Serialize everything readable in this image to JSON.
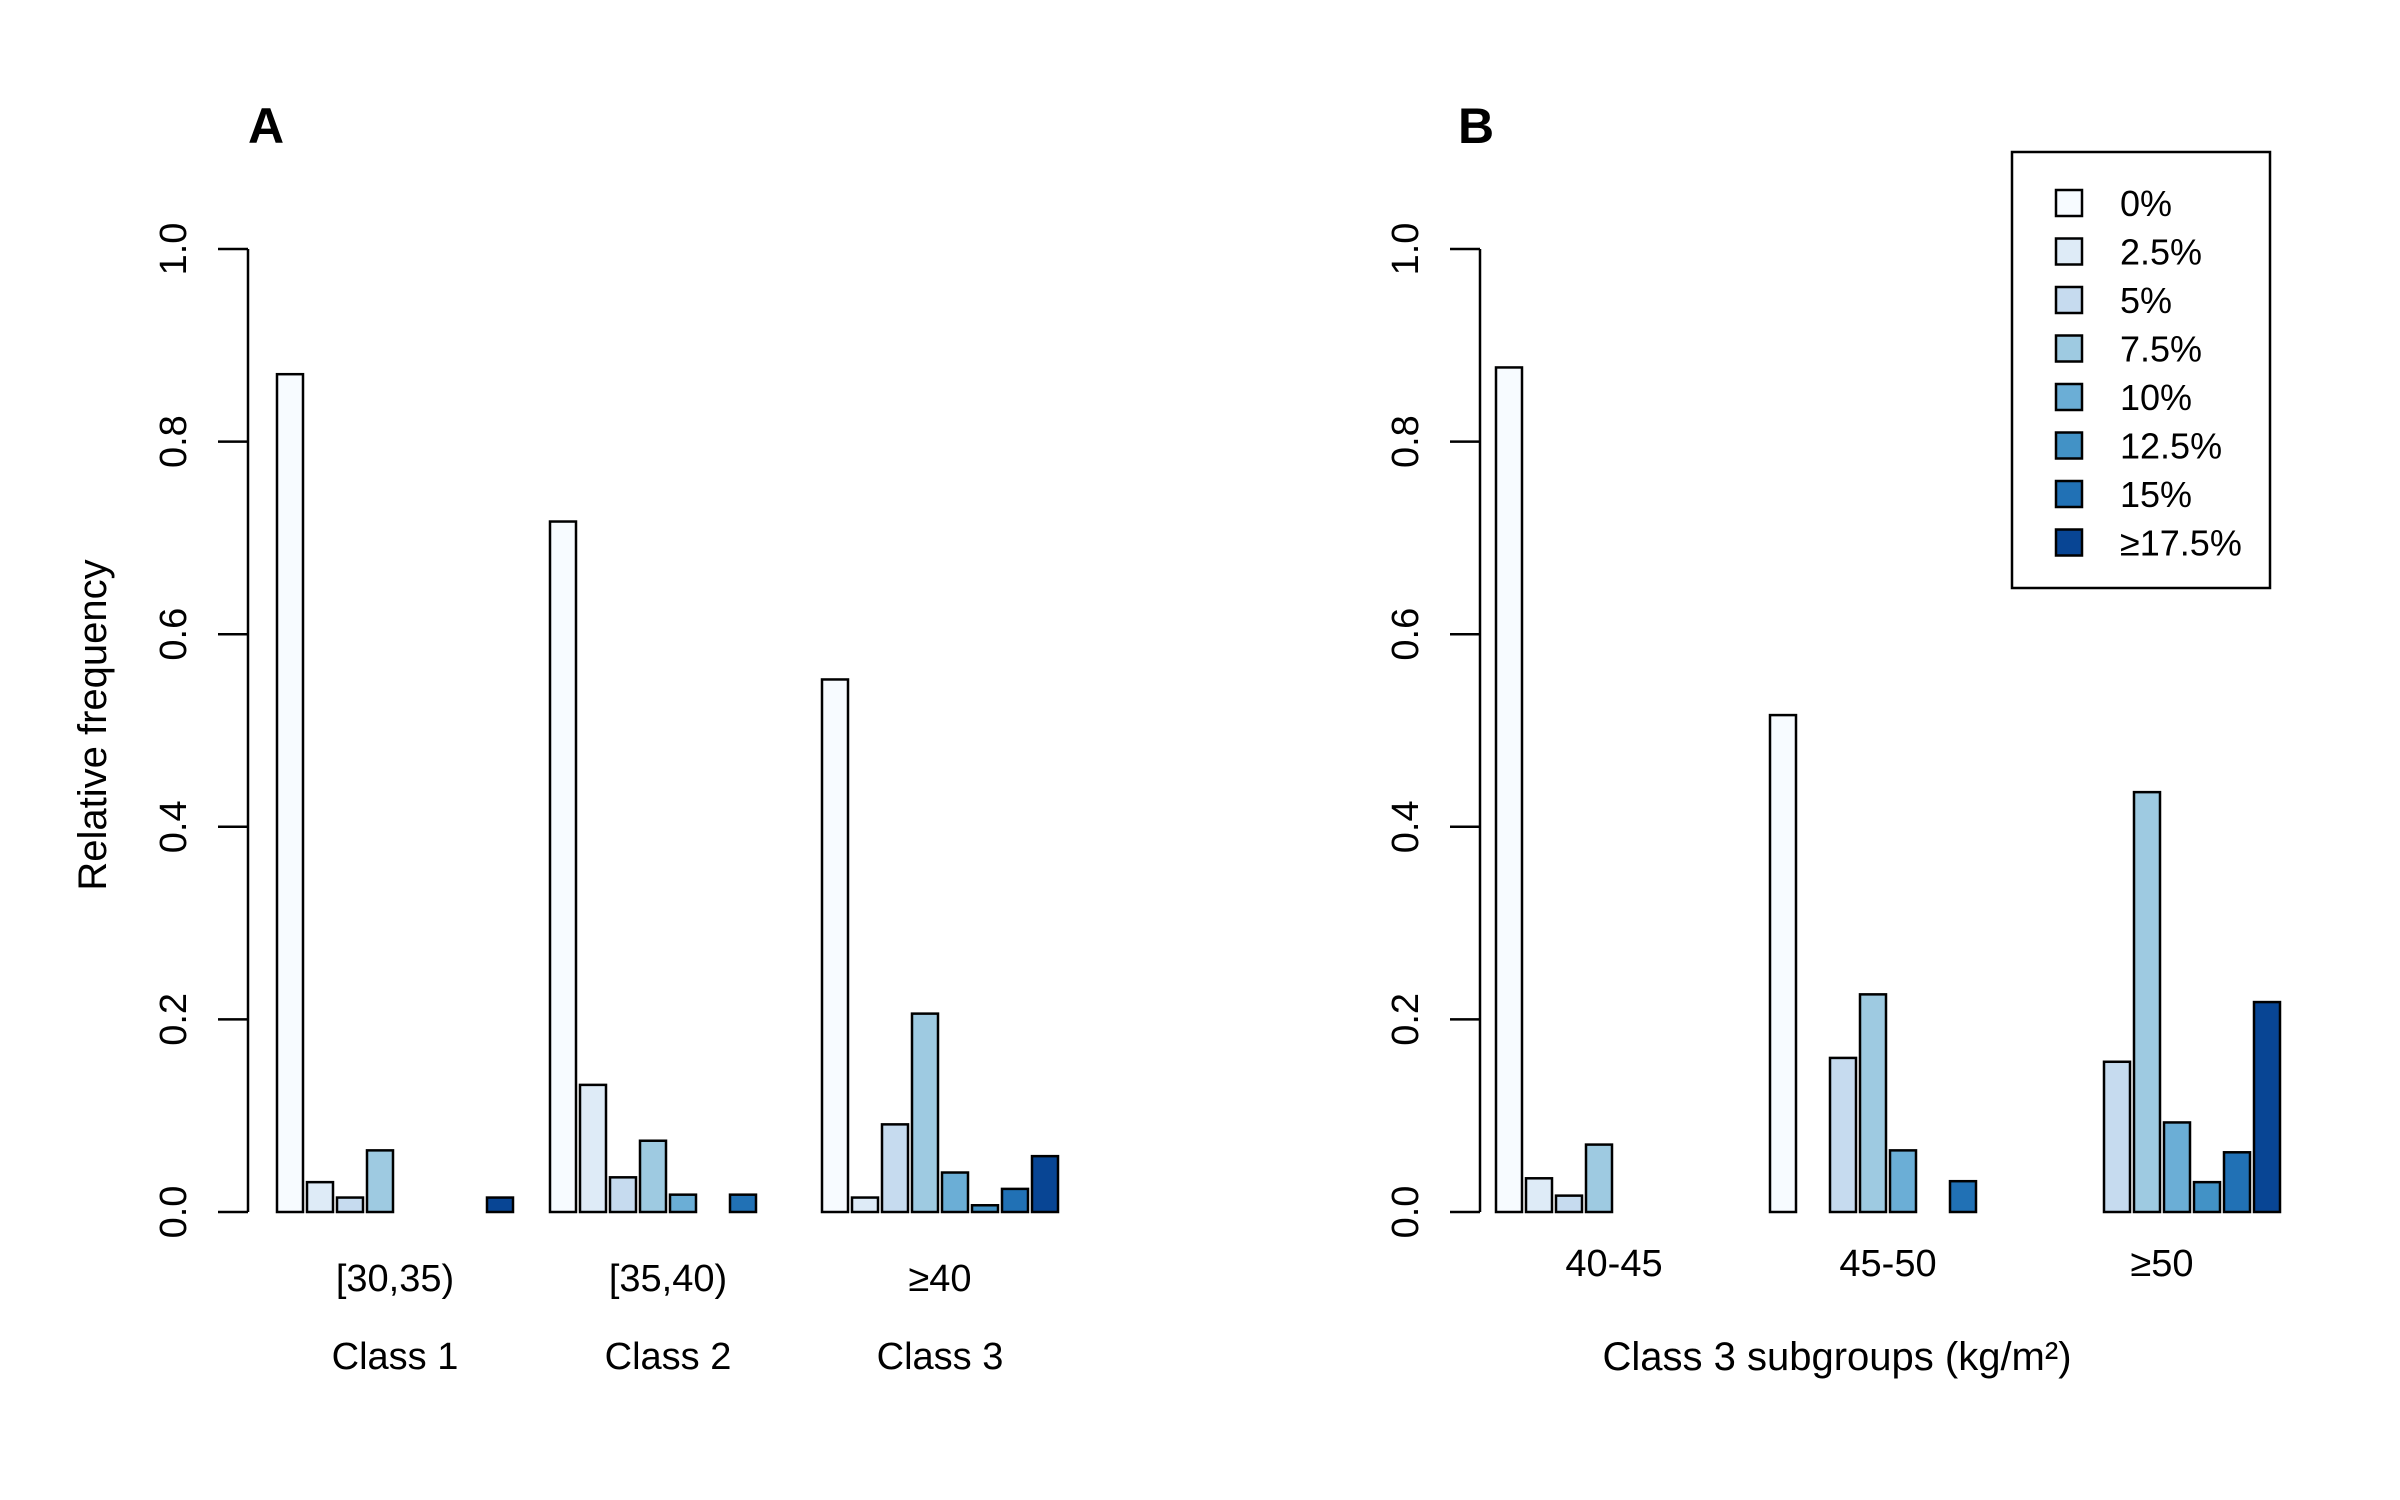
{
  "panel_labels": [
    "A",
    "B"
  ],
  "legend": {
    "entries": [
      "0%",
      "2.5%",
      "5%",
      "7.5%",
      "10%",
      "12.5%",
      "15%",
      "≥17.5%"
    ],
    "colors": [
      "#F7FBFF",
      "#DEEBF7",
      "#C6DBEF",
      "#9ECAE1",
      "#6BAED6",
      "#4292C6",
      "#2171B5",
      "#084594"
    ],
    "placement": "top-right of panel B"
  },
  "chart_data": [
    {
      "type": "bar",
      "panel": "A",
      "ylabel": "Relative frequency",
      "ylim": [
        0,
        1
      ],
      "yticks": [
        "0.0",
        "0.2",
        "0.4",
        "0.6",
        "0.8",
        "1.0"
      ],
      "categories": [
        "[30,35)",
        "[35,40)",
        "≥40"
      ],
      "group_labels": [
        "Class 1",
        "Class 2",
        "Class 3"
      ],
      "xlabel": "",
      "series": [
        {
          "name": "0%",
          "values": [
            0.87,
            0.717,
            0.553
          ]
        },
        {
          "name": "2.5%",
          "values": [
            0.031,
            0.132,
            0.015
          ]
        },
        {
          "name": "5%",
          "values": [
            0.015,
            0.036,
            0.091
          ]
        },
        {
          "name": "7.5%",
          "values": [
            0.064,
            0.074,
            0.206
          ]
        },
        {
          "name": "10%",
          "values": [
            0,
            0.018,
            0.041
          ]
        },
        {
          "name": "12.5%",
          "values": [
            0,
            0,
            0.007
          ]
        },
        {
          "name": "15%",
          "values": [
            0,
            0.018,
            0.024
          ]
        },
        {
          "name": "≥17.5%",
          "values": [
            0.015,
            0,
            0.058
          ]
        }
      ]
    },
    {
      "type": "bar",
      "panel": "B",
      "ylabel": "",
      "ylim": [
        0,
        1
      ],
      "yticks": [
        "0.0",
        "0.2",
        "0.4",
        "0.6",
        "0.8",
        "1.0"
      ],
      "categories": [
        "40-45",
        "45-50",
        "≥50"
      ],
      "group_labels": [],
      "xlabel": "Class 3 subgroups (kg/m²)",
      "series": [
        {
          "name": "0%",
          "values": [
            0.877,
            0.516,
            0
          ]
        },
        {
          "name": "2.5%",
          "values": [
            0.035,
            0,
            0
          ]
        },
        {
          "name": "5%",
          "values": [
            0.017,
            0.16,
            0.156
          ]
        },
        {
          "name": "7.5%",
          "values": [
            0.07,
            0.226,
            0.436
          ]
        },
        {
          "name": "10%",
          "values": [
            0,
            0.064,
            0.093
          ]
        },
        {
          "name": "12.5%",
          "values": [
            0,
            0,
            0.031
          ]
        },
        {
          "name": "15%",
          "values": [
            0,
            0.032,
            0.062
          ]
        },
        {
          "name": "≥17.5%",
          "values": [
            0,
            0,
            0.218
          ]
        }
      ]
    }
  ]
}
